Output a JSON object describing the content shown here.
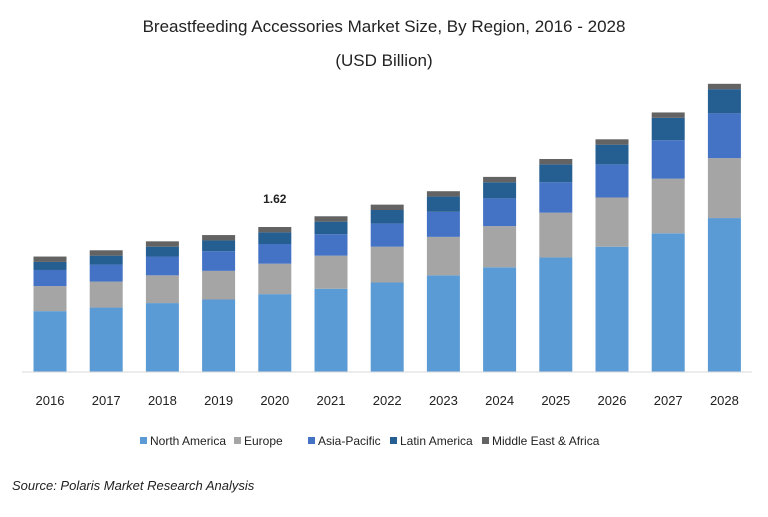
{
  "chart_data": {
    "type": "bar",
    "stacked": true,
    "title": "Breastfeeding Accessories Market Size, By Region, 2016 - 2028",
    "subtitle": "(USD Billion)",
    "xlabel": "",
    "ylabel": "",
    "ylim": [
      0,
      3.6
    ],
    "grid": false,
    "legend_position": "bottom",
    "categories": [
      "2016",
      "2017",
      "2018",
      "2019",
      "2020",
      "2021",
      "2022",
      "2023",
      "2024",
      "2025",
      "2026",
      "2027",
      "2028"
    ],
    "series": [
      {
        "name": "North America",
        "color": "#5b9bd5",
        "values": [
          0.68,
          0.72,
          0.77,
          0.81,
          0.87,
          0.93,
          1.0,
          1.08,
          1.17,
          1.28,
          1.4,
          1.55,
          1.72
        ]
      },
      {
        "name": "Europe",
        "color": "#a5a5a5",
        "values": [
          0.28,
          0.29,
          0.31,
          0.32,
          0.34,
          0.37,
          0.4,
          0.43,
          0.46,
          0.5,
          0.55,
          0.61,
          0.67
        ]
      },
      {
        "name": "Asia-Pacific",
        "color": "#4472c4",
        "values": [
          0.18,
          0.19,
          0.21,
          0.22,
          0.22,
          0.24,
          0.26,
          0.28,
          0.31,
          0.34,
          0.37,
          0.43,
          0.5
        ]
      },
      {
        "name": "Latin America",
        "color": "#255e91",
        "values": [
          0.09,
          0.1,
          0.11,
          0.12,
          0.13,
          0.14,
          0.15,
          0.17,
          0.18,
          0.2,
          0.22,
          0.25,
          0.27
        ]
      },
      {
        "name": "Middle East & Africa",
        "color": "#636363",
        "values": [
          0.06,
          0.06,
          0.06,
          0.06,
          0.06,
          0.06,
          0.06,
          0.06,
          0.06,
          0.06,
          0.06,
          0.06,
          0.06
        ]
      }
    ],
    "annotations": [
      {
        "category": "2020",
        "text": "1.62"
      }
    ]
  },
  "source": "Source: Polaris Market Research Analysis"
}
